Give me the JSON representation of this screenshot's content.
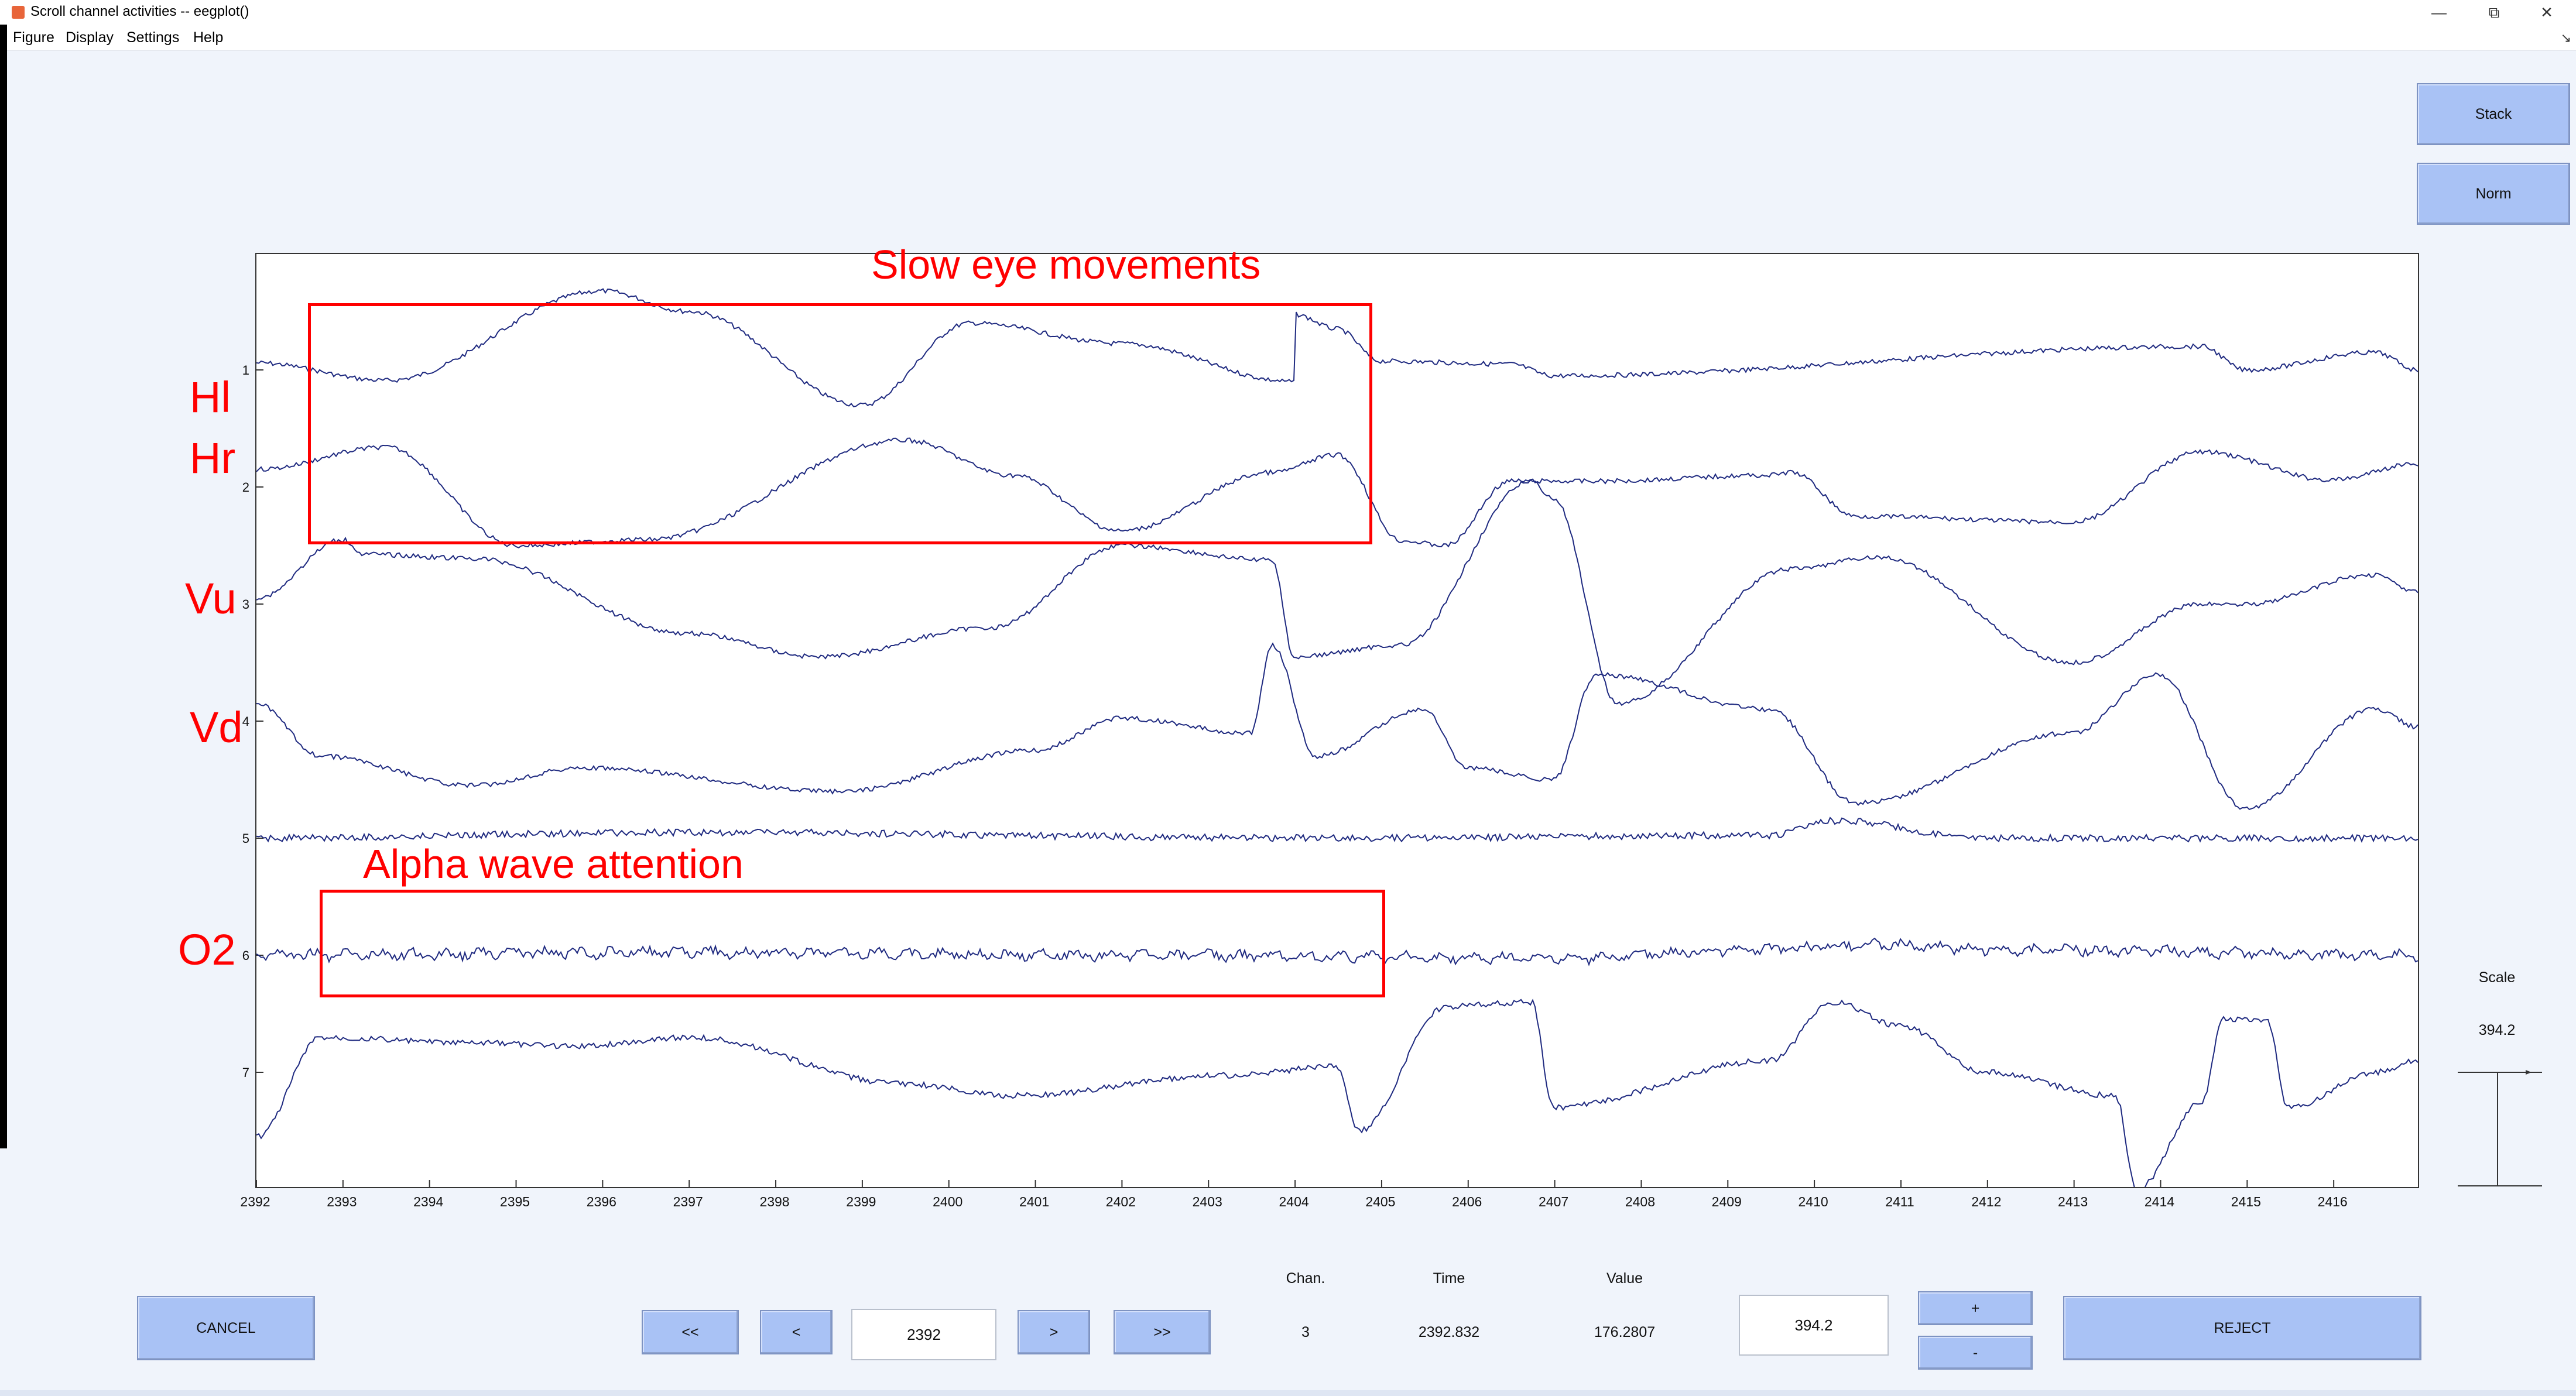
{
  "window": {
    "title": "Scroll channel activities -- eegplot()",
    "minimize": "—",
    "restore": "⧉",
    "close": "✕"
  },
  "menu": [
    "Figure",
    "Display",
    "Settings",
    "Help"
  ],
  "menu_arrow": "↘",
  "buttons": {
    "stack": "Stack",
    "norm": "Norm",
    "cancel": "CANCEL",
    "first": "<<",
    "prev": "<",
    "next": ">",
    "last": ">>",
    "plus": "+",
    "minus": "-",
    "reject": "REJECT"
  },
  "position_input": "2392",
  "scale": {
    "label": "Scale",
    "value": "394.2",
    "input": "394.2"
  },
  "readout": {
    "chan_label": "Chan.",
    "chan": "3",
    "time_label": "Time",
    "time": "2392.832",
    "value_label": "Value",
    "value": "176.2807"
  },
  "channels": [
    "1",
    "2",
    "3",
    "4",
    "5",
    "6",
    "7"
  ],
  "x_ticks": [
    "2392",
    "2393",
    "2394",
    "2395",
    "2396",
    "2397",
    "2398",
    "2399",
    "2400",
    "2401",
    "2402",
    "2403",
    "2404",
    "2405",
    "2406",
    "2407",
    "2408",
    "2409",
    "2410",
    "2411",
    "2412",
    "2413",
    "2414",
    "2415",
    "2416"
  ],
  "annotations": {
    "slow_eye": "Slow eye movements",
    "alpha": "Alpha wave attention",
    "hl": "Hl",
    "hr": "Hr",
    "vu": "Vu",
    "vd": "Vd",
    "o2": "O2"
  },
  "colors": {
    "trace": "#1f2a80",
    "annotation": "#ff0000",
    "button": "#a9c2f5"
  }
}
